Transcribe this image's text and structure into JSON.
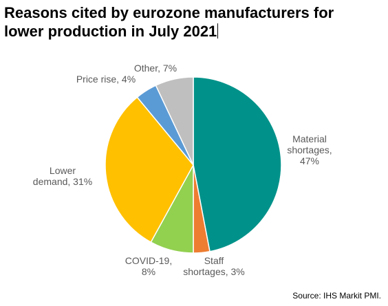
{
  "title_lines": [
    "Reasons cited by eurozone manufacturers for",
    "lower production in July 2021"
  ],
  "source": "Source: IHS Markit PMI.",
  "chart_data": {
    "type": "pie",
    "title": "Reasons cited by eurozone manufacturers for lower production in July 2021",
    "unit": "%",
    "slices": [
      {
        "label": "Material shortages",
        "value": 47,
        "color": "#00928A",
        "label_lines": [
          "Material",
          "shortages,",
          "47%"
        ]
      },
      {
        "label": "Staff shortages",
        "value": 3,
        "color": "#ED7D31",
        "label_lines": [
          "Staff",
          "shortages, 3%"
        ]
      },
      {
        "label": "COVID-19",
        "value": 8,
        "color": "#92D050",
        "label_lines": [
          "COVID-19,",
          "8%"
        ]
      },
      {
        "label": "Lower demand",
        "value": 31,
        "color": "#FFC000",
        "label_lines": [
          "Lower",
          "demand, 31%"
        ]
      },
      {
        "label": "Price rise",
        "value": 4,
        "color": "#5B9BD5",
        "label_lines": [
          "Price rise, 4%"
        ]
      },
      {
        "label": "Other",
        "value": 7,
        "color": "#BFBFBF",
        "label_lines": [
          "Other, 7%"
        ]
      }
    ],
    "start": "12 o'clock",
    "direction": "clockwise",
    "legend": "none (slices labelled directly)"
  }
}
